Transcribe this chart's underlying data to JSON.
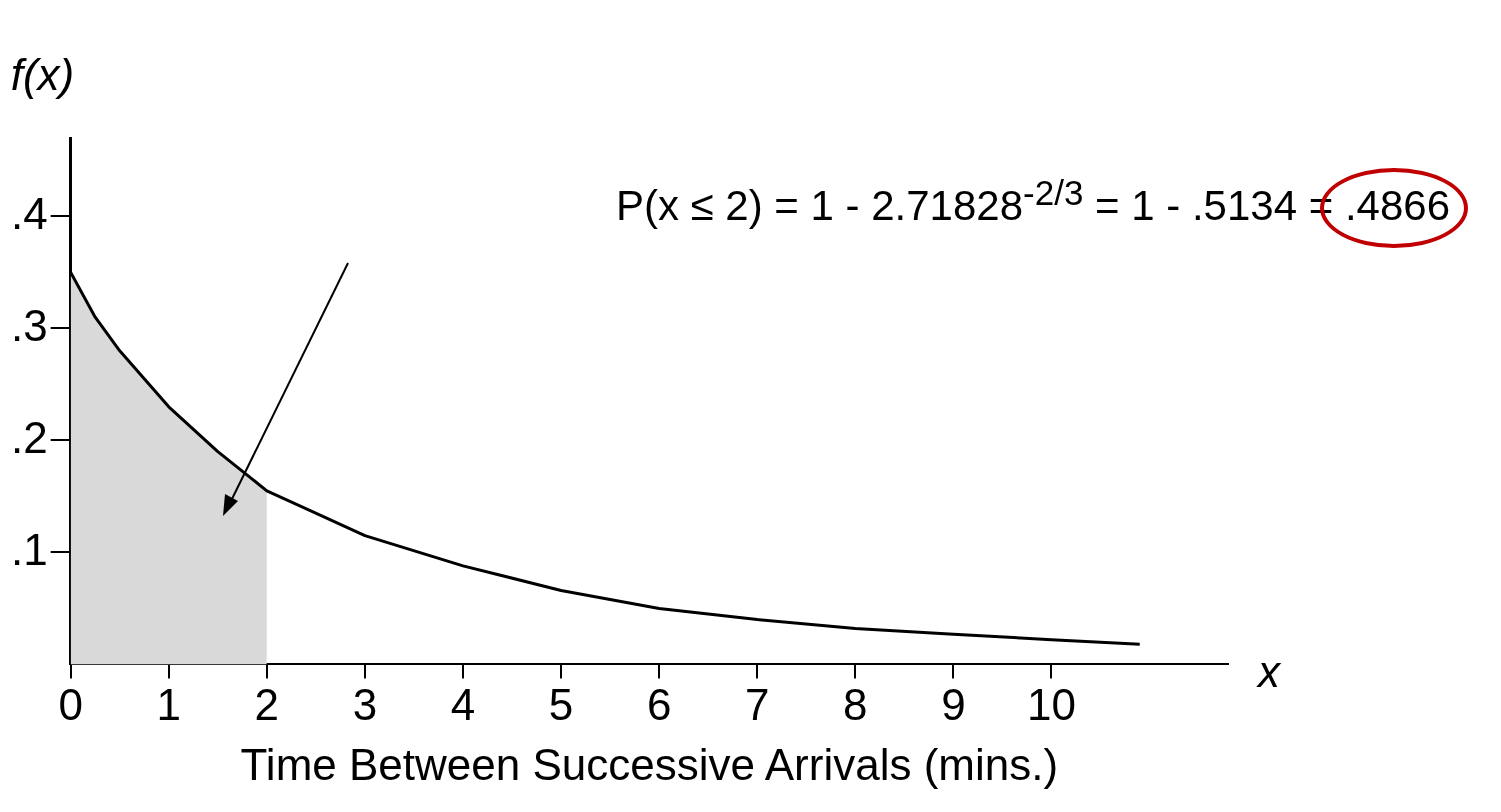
{
  "chart_data": {
    "type": "line",
    "xlabel": "Time Between Successive Arrivals (mins.)",
    "ylabel": "f(x)",
    "annotations": [
      "P(x ≤ 2) = 1 - 2.71828$^{-2/3}$ = 1 - .5134 = .4866",
      "x"
    ],
    "series": [
      {
        "type": "area",
        "color": "#d9d9d9",
        "x": [
          0,
          0.25,
          0.5,
          1,
          1.5,
          2
        ],
        "values": [
          0.35,
          0.31,
          0.28,
          0.23,
          0.19,
          0.155
        ]
      },
      {
        "type": "line",
        "color": "#000000",
        "x": [
          0,
          0.25,
          0.5,
          1,
          1.5,
          2,
          3,
          4,
          5,
          6,
          7,
          8,
          9,
          10,
          10.9
        ],
        "values": [
          0.35,
          0.31,
          0.28,
          0.23,
          0.19,
          0.155,
          0.115,
          0.088,
          0.066,
          0.05,
          0.04,
          0.032,
          0.027,
          0.022,
          0.018
        ]
      }
    ],
    "xlim": [
      0,
      11.8
    ],
    "xticks": [
      0,
      1,
      2,
      3,
      4,
      5,
      6,
      7,
      8,
      9,
      10
    ],
    "ylim": [
      0,
      0.47
    ],
    "yticks": [
      {
        "value": 0.1,
        "label": ".1"
      },
      {
        "value": 0.2,
        "label": ".2"
      },
      {
        "value": 0.3,
        "label": ".3"
      },
      {
        "value": 0.4,
        "label": ".4"
      }
    ],
    "grid": false,
    "legend": false,
    "marker": "none",
    "line_style": "solid"
  }
}
